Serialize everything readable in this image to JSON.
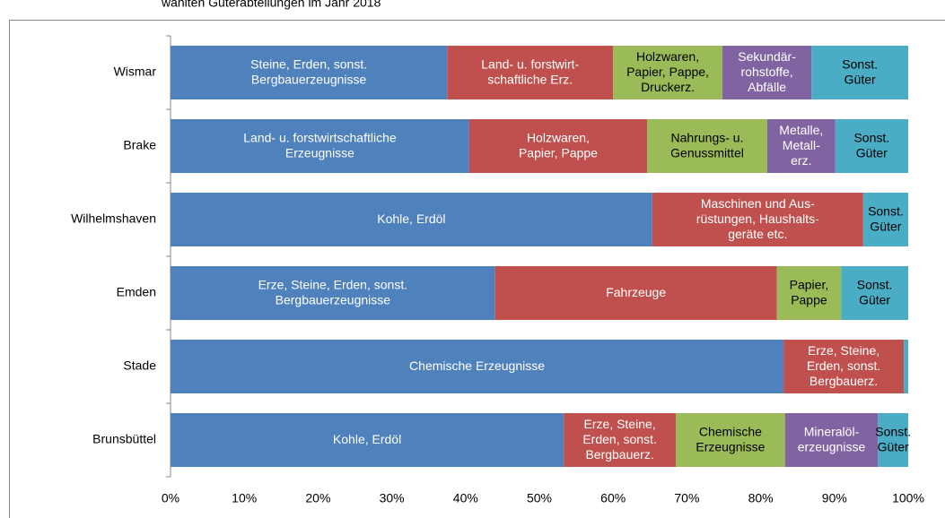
{
  "chart_data": {
    "type": "bar",
    "orientation": "horizontal",
    "stacked": true,
    "title": "wählten Güterabteilungen im Jahr 2018",
    "categories": [
      "Wismar",
      "Brake",
      "Wilhelmshaven",
      "Emden",
      "Stade",
      "Brunsbüttel"
    ],
    "xlim": [
      0,
      100
    ],
    "xticks": [
      {
        "value": 0,
        "label": "0%"
      },
      {
        "value": 10,
        "label": "10%"
      },
      {
        "value": 20,
        "label": "20%"
      },
      {
        "value": 30,
        "label": "30%"
      },
      {
        "value": 40,
        "label": "40%"
      },
      {
        "value": 50,
        "label": "50%"
      },
      {
        "value": 60,
        "label": "60%"
      },
      {
        "value": 70,
        "label": "70%"
      },
      {
        "value": 80,
        "label": "80%"
      },
      {
        "value": 90,
        "label": "90%"
      },
      {
        "value": 100,
        "label": "100%"
      }
    ],
    "series": [
      {
        "color": "#4f81bd",
        "label_color": "#ffffff",
        "values": [
          37.5,
          40.5,
          65.3,
          44.0,
          83.1,
          53.3
        ],
        "labels": [
          [
            "Steine, Erden, sonst.",
            "Bergbauerzeugnisse"
          ],
          [
            "Land- u. forstwirtschaftliche",
            "Erzeugnisse"
          ],
          [
            "Kohle, Erdöl"
          ],
          [
            "Erze, Steine, Erden, sonst.",
            "Bergbauerzeugnisse"
          ],
          [
            "Chemische Erzeugnisse"
          ],
          [
            "Kohle, Erdöl"
          ]
        ]
      },
      {
        "color": "#c0504d",
        "label_color": "#ffffff",
        "values": [
          22.5,
          24.1,
          28.6,
          38.2,
          16.3,
          15.2
        ],
        "labels": [
          [
            "Land-  u. forstwirt-",
            "schaftliche Erz."
          ],
          [
            "Holzwaren,",
            "Papier, Pappe"
          ],
          [
            "Maschinen und Aus-",
            "rüstungen, Haushalts-",
            "geräte etc."
          ],
          [
            "Fahrzeuge"
          ],
          [
            "Erze, Steine,",
            "Erden, sonst.",
            "Bergbauerz."
          ],
          [
            "Erze, Steine,",
            "Erden, sonst.",
            "Bergbauerz."
          ]
        ]
      },
      {
        "color": "#9bbb59",
        "label_color": "#000000",
        "values": [
          14.8,
          16.3,
          null,
          8.7,
          null,
          14.8
        ],
        "labels": [
          [
            "Holzwaren,",
            "Papier, Pappe,",
            "Druckerz."
          ],
          [
            "Nahrungs- u.",
            "Genussmittel"
          ],
          null,
          [
            "Papier,",
            "Pappe"
          ],
          null,
          [
            "Chemische",
            "Erzeugnisse"
          ]
        ]
      },
      {
        "color": "#8064a2",
        "label_color": "#ffffff",
        "values": [
          12.1,
          9.2,
          null,
          null,
          null,
          12.6
        ],
        "labels": [
          [
            "Sekundär-",
            "rohstoffe,",
            "Abfälle"
          ],
          [
            "Metalle,",
            "Metall-",
            "erz."
          ],
          null,
          null,
          null,
          [
            "Mineralöl-",
            "erzeugnisse"
          ]
        ]
      },
      {
        "color": "#4bacc6",
        "label_color": "#000000",
        "values": [
          13.1,
          9.9,
          6.1,
          9.1,
          0.6,
          4.1
        ],
        "labels": [
          [
            "Sonst.",
            "Güter"
          ],
          [
            "Sonst.",
            "Güter"
          ],
          [
            "Sonst.",
            "Güter"
          ],
          [
            "Sonst.",
            "Güter"
          ],
          null,
          [
            "Sonst.",
            "Güter"
          ]
        ]
      }
    ]
  }
}
